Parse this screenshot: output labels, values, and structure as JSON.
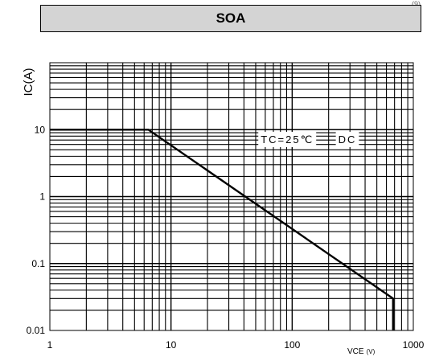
{
  "header": {
    "corner": "(9)"
  },
  "chart_data": {
    "type": "line",
    "title": "SOA",
    "ylabel": "IC(A)",
    "xlabel": "VCE (V)",
    "xlabel_main": "VCE",
    "xlabel_unit": "(V)",
    "xscale": "log",
    "yscale": "log",
    "xlim": [
      1,
      1000
    ],
    "ylim": [
      0.01,
      100
    ],
    "grid": true,
    "x_ticks": [
      {
        "value": 1,
        "label": "1"
      },
      {
        "value": 10,
        "label": "10"
      },
      {
        "value": 100,
        "label": "100"
      },
      {
        "value": 1000,
        "label": "1000"
      }
    ],
    "y_ticks": [
      {
        "value": 0.01,
        "label": "0.01"
      },
      {
        "value": 0.1,
        "label": "0.1"
      },
      {
        "value": 1,
        "label": "1"
      },
      {
        "value": 10,
        "label": "10"
      }
    ],
    "annotations": [
      {
        "text": "TC=25℃",
        "x": 55,
        "y": 6.3
      },
      {
        "text": "DC",
        "x": 240,
        "y": 6.3
      }
    ],
    "series": [
      {
        "name": "",
        "color": "#000000",
        "points": [
          [
            1,
            10
          ],
          [
            6.5,
            10
          ],
          [
            680,
            0.03
          ],
          [
            680,
            0.01
          ]
        ]
      }
    ]
  }
}
